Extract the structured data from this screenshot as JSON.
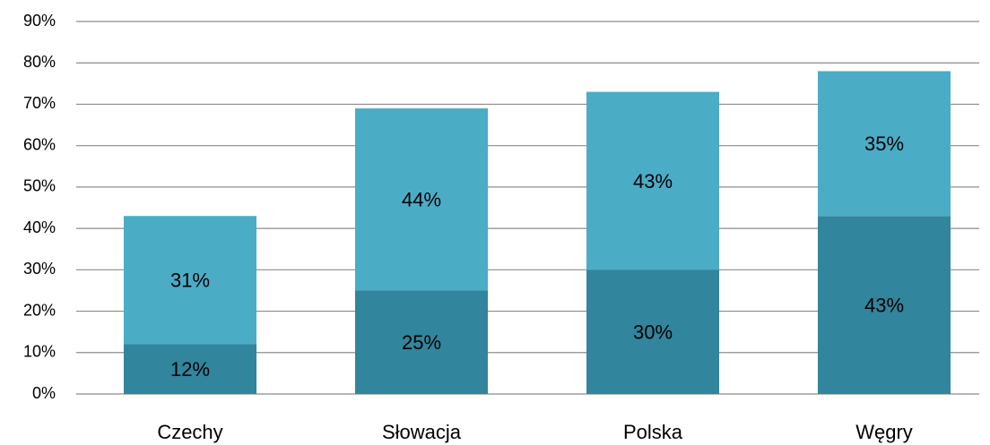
{
  "chart_data": {
    "type": "stacked_bar",
    "categories": [
      "Czechy",
      "Słowacja",
      "Polska",
      "Węgry"
    ],
    "series": [
      {
        "color": "#31859c",
        "values": [
          12,
          25,
          30,
          43
        ],
        "value_labels": [
          "12%",
          "25%",
          "30%",
          "43%"
        ]
      },
      {
        "color": "#4bacc6",
        "values": [
          31,
          44,
          43,
          35
        ],
        "value_labels": [
          "31%",
          "44%",
          "43%",
          "35%"
        ]
      }
    ],
    "ylim": [
      0,
      90
    ],
    "yticks": [
      {
        "value": 0,
        "label": "0%"
      },
      {
        "value": 10,
        "label": "10%"
      },
      {
        "value": 20,
        "label": "20%"
      },
      {
        "value": 30,
        "label": "30%"
      },
      {
        "value": 40,
        "label": "40%"
      },
      {
        "value": 50,
        "label": "50%"
      },
      {
        "value": 60,
        "label": "60%"
      },
      {
        "value": 70,
        "label": "70%"
      },
      {
        "value": 80,
        "label": "80%"
      },
      {
        "value": 90,
        "label": "90%"
      }
    ],
    "grid": true
  }
}
